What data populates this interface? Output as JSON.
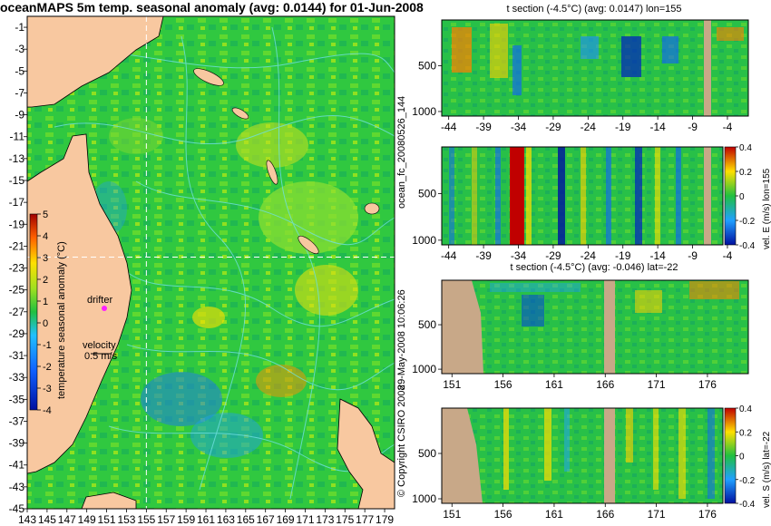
{
  "title": "oceanMAPS 5m temp. seasonal anomaly (avg: 0.0144) for 01-Jun-2008",
  "side_notes": {
    "forecast_id": "ocean_fc_20080526_144",
    "run_date": "29-May-2008 10:06:26",
    "copyright": "© Copyright CSIRO 2008"
  },
  "colors": {
    "land": "#f8c8a0",
    "panel_land": "#c8a888",
    "cold": "#0010a0",
    "neutral": "#20c040",
    "warm": "#e01000",
    "contour": "#70e0e0"
  },
  "chart_data": [
    {
      "type": "heatmap",
      "name": "map",
      "title": "oceanMAPS 5m temp. seasonal anomaly (avg: 0.0144) for 01-Jun-2008",
      "x_ticks": [
        "143",
        "145",
        "147",
        "149",
        "151",
        "153",
        "155",
        "157",
        "159",
        "161",
        "163",
        "165",
        "167",
        "169",
        "171",
        "173",
        "175",
        "177",
        "179"
      ],
      "y_ticks": [
        "-1",
        "-3",
        "-5",
        "-7",
        "-9",
        "-11",
        "-13",
        "-15",
        "-17",
        "-19",
        "-21",
        "-23",
        "-25",
        "-27",
        "-29",
        "-31",
        "-33",
        "-35",
        "-37",
        "-39",
        "-41",
        "-43",
        "-45"
      ],
      "xlim": [
        143,
        180
      ],
      "ylim": [
        -45,
        0
      ],
      "section_lines": {
        "lon": 155,
        "lat": -22
      },
      "annotations": {
        "drifter": "drifter",
        "velocity_label": "velocity",
        "velocity_scale": "0.5 m/s"
      },
      "colorbar": {
        "label": "temperature seasonal anomaly (°C)",
        "ticks": [
          "5",
          "4",
          "3",
          "2",
          "1",
          "0",
          "-1",
          "-2",
          "-3",
          "-4"
        ],
        "range": [
          -4,
          5
        ]
      }
    },
    {
      "type": "heatmap",
      "name": "t_section_lon",
      "title": "t section (-4.5°C) (avg: 0.0147) lon=155",
      "x_ticks": [
        "-44",
        "-39",
        "-34",
        "-29",
        "-24",
        "-19",
        "-14",
        "-9",
        "-4"
      ],
      "y_ticks": [
        "500",
        "1000"
      ],
      "xlim": [
        -45,
        -1
      ],
      "ylim": [
        1050,
        0
      ]
    },
    {
      "type": "heatmap",
      "name": "u_section_lon",
      "title": "",
      "x_ticks": [
        "-44",
        "-39",
        "-34",
        "-29",
        "-24",
        "-19",
        "-14",
        "-9",
        "-4"
      ],
      "y_ticks": [
        "500",
        "1000"
      ],
      "xlim": [
        -45,
        -1
      ],
      "ylim": [
        1050,
        0
      ],
      "colorbar": {
        "label": "vel. E (m/s) lon=155",
        "ticks": [
          "0.4",
          "0.2",
          "0",
          "-0.2",
          "-0.4"
        ],
        "range": [
          -0.4,
          0.4
        ]
      }
    },
    {
      "type": "heatmap",
      "name": "t_section_lat",
      "title": "t section (-4.5°C) (avg: -0.046) lat=-22",
      "x_ticks": [
        "151",
        "156",
        "161",
        "166",
        "171",
        "176"
      ],
      "y_ticks": [
        "500",
        "1000"
      ],
      "xlim": [
        150,
        180
      ],
      "ylim": [
        1050,
        0
      ]
    },
    {
      "type": "heatmap",
      "name": "v_section_lat",
      "title": "",
      "x_ticks": [
        "151",
        "156",
        "161",
        "166",
        "171",
        "176"
      ],
      "y_ticks": [
        "500",
        "1000"
      ],
      "xlim": [
        150,
        180
      ],
      "ylim": [
        1050,
        0
      ],
      "colorbar": {
        "label": "vel. S (m/s) lat=-22",
        "ticks": [
          "0.4",
          "0.2",
          "0",
          "-0.2",
          "-0.4"
        ],
        "range": [
          -0.4,
          0.4
        ]
      }
    }
  ]
}
